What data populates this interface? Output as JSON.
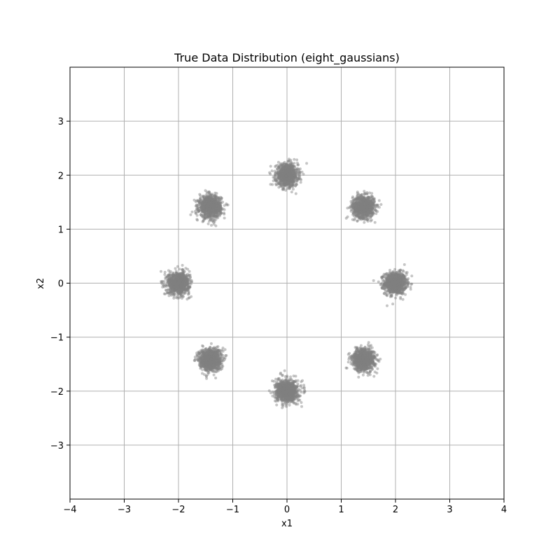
{
  "chart_data": {
    "type": "scatter",
    "title": "True Data Distribution (eight_gaussians)",
    "xlabel": "x1",
    "ylabel": "x2",
    "xlim": [
      -4,
      4
    ],
    "ylim": [
      -4,
      4
    ],
    "xticks": [
      -4,
      -3,
      -2,
      -1,
      0,
      1,
      2,
      3,
      4
    ],
    "yticks": [
      -3,
      -2,
      -1,
      0,
      1,
      2,
      3
    ],
    "grid": true,
    "point_color": "#808080",
    "point_opacity": 0.45,
    "cluster_std": 0.1,
    "points_per_cluster": 1000,
    "cluster_centers": [
      {
        "x": 2.0,
        "y": 0.0
      },
      {
        "x": 1.414,
        "y": 1.414
      },
      {
        "x": 0.0,
        "y": 2.0
      },
      {
        "x": -1.414,
        "y": 1.414
      },
      {
        "x": -2.0,
        "y": 0.0
      },
      {
        "x": -1.414,
        "y": -1.414
      },
      {
        "x": 0.0,
        "y": -2.0
      },
      {
        "x": 1.414,
        "y": -1.414
      }
    ]
  },
  "colors": {
    "grid": "#b0b0b0",
    "axes": "#000000",
    "background": "#ffffff"
  }
}
